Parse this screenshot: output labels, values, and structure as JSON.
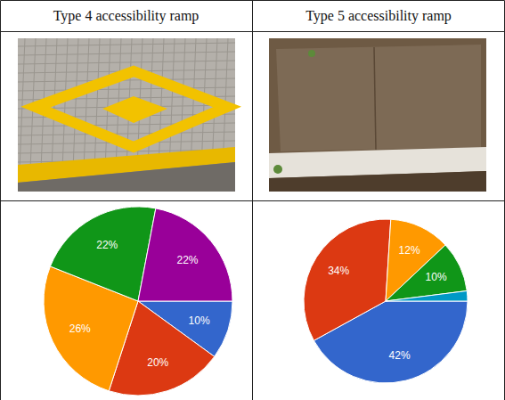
{
  "headers": [
    "Type 4 accessibility ramp",
    "Type 5 accessibility ramp"
  ],
  "chart_data": [
    {
      "type": "pie",
      "values": [
        10,
        20,
        26,
        22,
        22
      ],
      "value_labels": [
        "10%",
        "20%",
        "26%",
        "22%",
        "22%"
      ],
      "colors": [
        "#3366cc",
        "#dc3912",
        "#ff9900",
        "#109618",
        "#990099"
      ],
      "data_labels": true
    },
    {
      "type": "pie",
      "values": [
        42,
        34,
        12,
        10,
        2
      ],
      "value_labels": [
        "42%",
        "34%",
        "12%",
        "10%",
        null
      ],
      "colors": [
        "#3366cc",
        "#dc3912",
        "#ff9900",
        "#109618",
        "#0099c6"
      ],
      "data_labels": true
    }
  ]
}
